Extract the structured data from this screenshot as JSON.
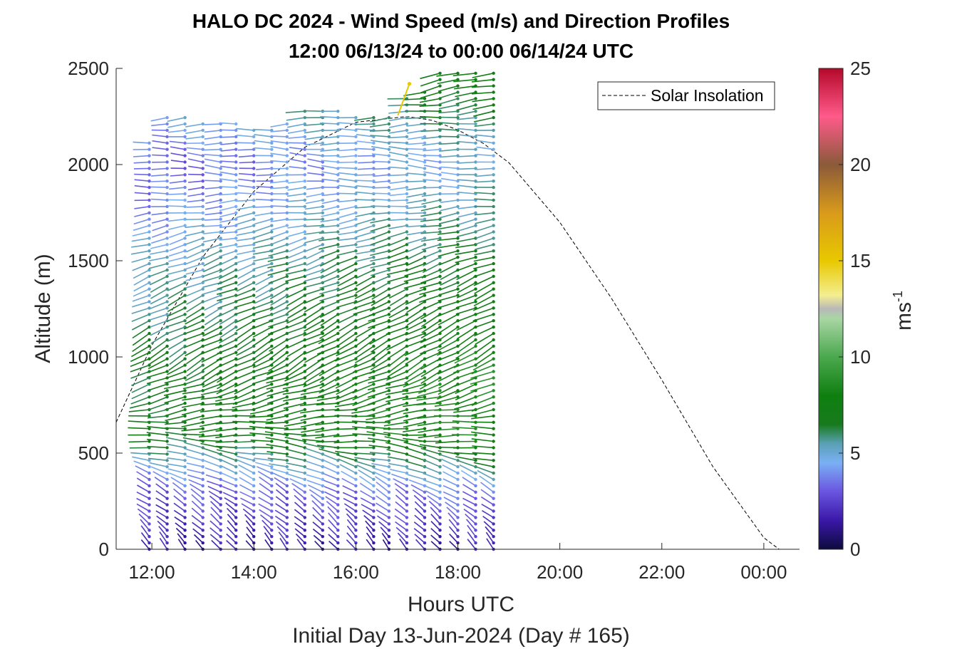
{
  "chart_data": {
    "type": "quiver",
    "title": "HALO DC 2024 - Wind Speed (m/s) and Direction Profiles",
    "subtitle": "12:00 06/13/24 to 00:00 06/14/24  UTC",
    "xlabel": "Hours UTC",
    "xlabel2": "Initial Day 13-Jun-2024 (Day # 165)",
    "ylabel": "Altitude (m)",
    "xlim": [
      11.3,
      24.7
    ],
    "ylim": [
      0,
      2500
    ],
    "x_ticks": [
      12,
      14,
      16,
      18,
      20,
      22,
      24
    ],
    "x_tick_labels": [
      "12:00",
      "14:00",
      "16:00",
      "18:00",
      "20:00",
      "22:00",
      "00:00"
    ],
    "y_ticks": [
      0,
      500,
      1000,
      1500,
      2000,
      2500
    ],
    "y_tick_labels": [
      "0",
      "500",
      "1000",
      "1500",
      "2000",
      "2500"
    ],
    "legend": {
      "entries": [
        "Solar Insolation"
      ],
      "position": "top-right"
    },
    "colorbar": {
      "label": "ms",
      "label_superscript": "-1",
      "range": [
        0,
        25
      ],
      "ticks": [
        0,
        5,
        10,
        15,
        20,
        25
      ],
      "tick_labels": [
        "0",
        "5",
        "10",
        "15",
        "20",
        "25"
      ],
      "colors": [
        {
          "v": 0,
          "c": "#0d0a3d"
        },
        {
          "v": 1.5,
          "c": "#3a18a8"
        },
        {
          "v": 3,
          "c": "#6a55e0"
        },
        {
          "v": 4.5,
          "c": "#7ab0f5"
        },
        {
          "v": 5.5,
          "c": "#5aa0b4"
        },
        {
          "v": 6.5,
          "c": "#177a1c"
        },
        {
          "v": 8,
          "c": "#0f7f10"
        },
        {
          "v": 10,
          "c": "#4ba84e"
        },
        {
          "v": 12,
          "c": "#a9d6a4"
        },
        {
          "v": 12.5,
          "c": "#b8b8b8"
        },
        {
          "v": 13.2,
          "c": "#f4ee90"
        },
        {
          "v": 15,
          "c": "#e8c800"
        },
        {
          "v": 17.5,
          "c": "#d99a1a"
        },
        {
          "v": 20,
          "c": "#8a5a3a"
        },
        {
          "v": 22.5,
          "c": "#ff5a8a"
        },
        {
          "v": 25,
          "c": "#b5082a"
        }
      ]
    },
    "solar_insolation": {
      "x": [
        11.3,
        12,
        13,
        14,
        15,
        16,
        17,
        17.5,
        18,
        18.5,
        19,
        20,
        21,
        22,
        23,
        24,
        24.3,
        24.6
      ],
      "y": [
        660,
        1060,
        1520,
        1860,
        2090,
        2220,
        2250,
        2230,
        2180,
        2110,
        2010,
        1700,
        1310,
        880,
        430,
        60,
        0,
        0
      ]
    },
    "wind_profiles": {
      "times": [
        11.95,
        12.3,
        12.65,
        13.0,
        13.35,
        13.65,
        14.0,
        14.35,
        14.65,
        15.0,
        15.35,
        15.65,
        16.0,
        16.35,
        16.65,
        17.0,
        17.35,
        17.65,
        18.0,
        18.35,
        18.7
      ],
      "top_altitude": [
        2140,
        2250,
        2260,
        2240,
        2230,
        2230,
        2200,
        2190,
        2240,
        2280,
        2300,
        2290,
        2260,
        2260,
        2270,
        2350,
        2400,
        2480,
        2500,
        2500,
        2500
      ],
      "altitude_step": 33,
      "layers": [
        {
          "alt": 0,
          "speed": 1.5,
          "dir_deg": 320
        },
        {
          "alt": 300,
          "speed": 3.0,
          "dir_deg": 300
        },
        {
          "alt": 600,
          "speed": 6.8,
          "dir_deg": 270
        },
        {
          "alt": 1000,
          "speed": 6.5,
          "dir_deg": 240
        },
        {
          "alt": 1500,
          "speed": 5.0,
          "dir_deg": 250
        },
        {
          "alt": 2000,
          "speed": 3.0,
          "dir_deg": 275
        },
        {
          "alt": 2500,
          "speed": 6.0,
          "dir_deg": 255
        }
      ],
      "late_profile_boost": 1.8,
      "outlier": {
        "time": 17.05,
        "alt": 2420,
        "speed": 15.0,
        "dir_deg": 200
      }
    }
  }
}
